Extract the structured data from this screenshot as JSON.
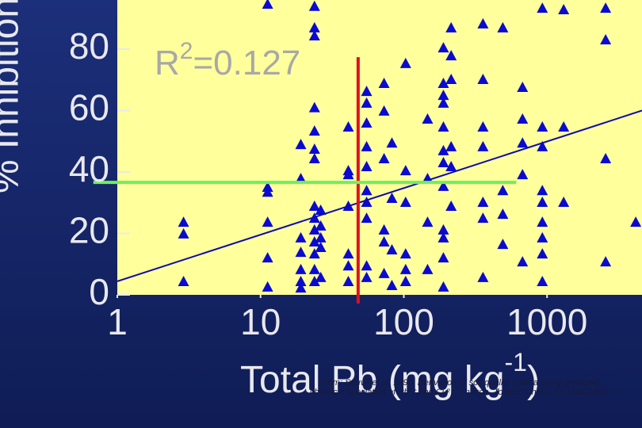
{
  "chart_data": {
    "type": "scatter",
    "y_label": "% Inhibition",
    "x_label": {
      "text": "Total Pb (mg kg",
      "superscript": "-1",
      "suffix": ")"
    },
    "annotation": {
      "text": "R",
      "superscript": "2",
      "suffix": "=0.127"
    },
    "citation": [
      "From: Sauvé et al. 1998. Derivation of soil quality criteria using predicted",
      "chemical speciation of Pb²⁺ and Cu²⁺. Environ. Toxicol. Chem. 17:1481-1489."
    ],
    "x_log": true,
    "xlim": [
      1,
      4600
    ],
    "xticks": [
      1,
      10,
      100,
      1000
    ],
    "ylim": [
      0,
      96
    ],
    "yticks": [
      0,
      20,
      40,
      60,
      80
    ],
    "color": "#0a0ad0",
    "x": [
      2.9,
      2.9,
      2.9,
      11.2,
      11.2,
      11.2,
      11.2,
      11.2,
      11.2,
      19.1,
      19.1,
      19.1,
      19.1,
      19.1,
      19.1,
      19.1,
      23.8,
      23.8,
      23.8,
      23.8,
      23.8,
      23.8,
      23.8,
      23.8,
      23.8,
      23.8,
      23.8,
      23.8,
      23.8,
      23.8,
      26.3,
      26.3,
      26.3,
      26.3,
      26.3,
      41,
      41,
      41,
      41,
      41,
      41,
      41,
      55,
      55,
      55,
      55,
      55,
      55,
      55,
      55,
      55,
      55,
      72.8,
      72.8,
      72.8,
      72.8,
      72.8,
      72.8,
      103,
      103,
      103,
      103,
      103,
      103,
      82.6,
      82.6,
      82.6,
      82.6,
      146.5,
      146.5,
      146.5,
      146.5,
      189,
      189,
      189,
      189,
      189,
      189,
      189,
      189,
      189,
      189,
      189,
      189,
      214,
      214,
      214,
      214,
      214,
      214,
      357,
      357,
      357,
      357,
      357,
      357,
      357,
      491,
      491,
      491,
      491,
      674,
      674,
      674,
      674,
      674,
      927,
      927,
      927,
      927,
      927,
      927,
      927,
      927,
      927,
      1306,
      1306,
      1306,
      2564,
      2564,
      2564,
      2564,
      4160
    ],
    "y": [
      23.7,
      19.9,
      4.4,
      94.7,
      35.1,
      33.5,
      23.7,
      12.1,
      2.6,
      49,
      37.9,
      18.6,
      13.9,
      8.3,
      4.4,
      2.3,
      94,
      87,
      84.4,
      61,
      53.4,
      47.5,
      44.4,
      28.9,
      25,
      21.2,
      17.3,
      13.4,
      8.3,
      4.4,
      27.6,
      22.5,
      18.6,
      15.5,
      5.7,
      54.7,
      40.5,
      39.2,
      28.9,
      13.4,
      9.5,
      4.4,
      66.3,
      62.5,
      56,
      48.3,
      41.8,
      34,
      30.2,
      25,
      9.5,
      5.7,
      68.9,
      59.9,
      44.4,
      21.2,
      17.3,
      7,
      75.4,
      40.5,
      30.2,
      13.4,
      8.3,
      4.4,
      49.5,
      31.5,
      14.7,
      3.1,
      57.3,
      37.9,
      23.7,
      8.3,
      80.5,
      68.9,
      65,
      62.5,
      54.7,
      47,
      43.1,
      35.4,
      21.2,
      18.6,
      12.1,
      2.6,
      87,
      77.9,
      70.2,
      48.3,
      41.8,
      28.9,
      88.3,
      70.2,
      54.7,
      48.3,
      30.2,
      25,
      5.7,
      87,
      34,
      26.3,
      16.5,
      67.6,
      57.3,
      49.5,
      39.2,
      10.8,
      93.4,
      54.7,
      48.3,
      34,
      30.2,
      23.7,
      18.6,
      13.4,
      4.4,
      92.9,
      54.7,
      30.2,
      93.4,
      83.1,
      44.4,
      10.8,
      23.7
    ],
    "reference_lines": [
      {
        "color": "#0a0ab0",
        "x": [
          1,
          4600
        ],
        "y": [
          4.4,
          60
        ]
      },
      {
        "color": "#e01020",
        "x": [
          48,
          48
        ],
        "y": [
          77.4,
          -2.8
        ]
      },
      {
        "color": "#70ee60",
        "x": [
          0.68,
          610
        ],
        "y": [
          36.6,
          36.6
        ]
      }
    ]
  }
}
